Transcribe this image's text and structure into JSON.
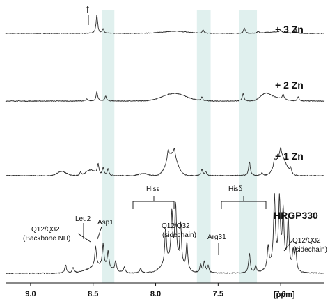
{
  "chart_data": {
    "type": "line",
    "xlabel": "[ppm]",
    "x_reversed": true,
    "xlim": [
      9.2,
      6.65
    ],
    "x_ticks": [
      {
        "value": 9.0,
        "label": "9.0"
      },
      {
        "value": 8.5,
        "label": "8.5"
      },
      {
        "value": 8.0,
        "label": "8.0"
      },
      {
        "value": 7.5,
        "label": "7.5"
      },
      {
        "value": 7.0,
        "label": "7.0"
      }
    ],
    "highlight_bands": [
      {
        "from": 8.43,
        "to": 8.33
      },
      {
        "from": 7.67,
        "to": 7.56
      },
      {
        "from": 7.33,
        "to": 7.19
      }
    ],
    "series": [
      {
        "name": "+ 3 Zn",
        "peaks": [
          [
            8.47,
            26
          ],
          [
            8.42,
            6
          ],
          [
            7.62,
            5
          ],
          [
            7.29,
            8
          ],
          [
            7.18,
            3
          ],
          [
            7.0,
            3
          ],
          [
            6.88,
            6
          ]
        ],
        "broad": [
          [
            7.85,
            3,
            0.15
          ],
          [
            7.05,
            2,
            0.1
          ]
        ]
      },
      {
        "name": "+ 2 Zn",
        "peaks": [
          [
            8.47,
            13
          ],
          [
            8.4,
            7
          ],
          [
            7.63,
            5
          ],
          [
            7.3,
            11
          ],
          [
            6.98,
            7
          ],
          [
            6.86,
            6
          ],
          [
            8.55,
            3
          ]
        ],
        "broad": [
          [
            7.85,
            11,
            0.13
          ],
          [
            7.12,
            10,
            0.06
          ],
          [
            7.03,
            4,
            0.08
          ]
        ]
      },
      {
        "name": "+ 1 Zn",
        "peaks": [
          [
            8.46,
            15
          ],
          [
            8.42,
            11
          ],
          [
            8.38,
            10
          ],
          [
            8.6,
            5
          ],
          [
            7.9,
            14
          ],
          [
            7.85,
            12
          ],
          [
            7.63,
            9
          ],
          [
            7.6,
            6
          ],
          [
            7.25,
            20
          ],
          [
            7.05,
            10
          ],
          [
            7.0,
            12
          ],
          [
            6.92,
            8
          ],
          [
            7.15,
            4
          ]
        ],
        "broad": [
          [
            7.87,
            30,
            0.06
          ],
          [
            7.0,
            28,
            0.06
          ],
          [
            8.75,
            6,
            0.05
          ],
          [
            8.52,
            8,
            0.05
          ],
          [
            8.1,
            3,
            0.05
          ]
        ]
      },
      {
        "name": "HRGP330",
        "peaks": [
          [
            8.72,
            12
          ],
          [
            8.66,
            8
          ],
          [
            8.48,
            28
          ],
          [
            8.42,
            32
          ],
          [
            8.38,
            24
          ],
          [
            8.32,
            14
          ],
          [
            8.25,
            8
          ],
          [
            8.12,
            7
          ],
          [
            7.92,
            50
          ],
          [
            7.87,
            70
          ],
          [
            7.84,
            80
          ],
          [
            7.8,
            60
          ],
          [
            7.75,
            38
          ],
          [
            7.64,
            12
          ],
          [
            7.61,
            16
          ],
          [
            7.58,
            10
          ],
          [
            7.25,
            28
          ],
          [
            7.1,
            30
          ],
          [
            7.05,
            95
          ],
          [
            7.01,
            88
          ],
          [
            6.98,
            75
          ],
          [
            6.94,
            70
          ],
          [
            6.9,
            26
          ],
          [
            6.88,
            30
          ],
          [
            7.2,
            10
          ]
        ],
        "broad": [
          [
            8.45,
            10,
            0.12
          ],
          [
            7.87,
            16,
            0.1
          ],
          [
            7.02,
            16,
            0.09
          ]
        ]
      }
    ],
    "annotations": [
      {
        "text": "f"
      },
      {
        "text": "Leu2"
      },
      {
        "text": "Asp1"
      },
      {
        "text": "Q12/Q32"
      },
      {
        "text": "(Backbone NH)"
      },
      {
        "text": "Hisε"
      },
      {
        "text": "Q12/Q32"
      },
      {
        "text": "(sidechain)"
      },
      {
        "text": "Arg31"
      },
      {
        "text": "Hisδ"
      },
      {
        "text": "Q12/Q32"
      },
      {
        "text": "(sidechain)"
      }
    ]
  }
}
